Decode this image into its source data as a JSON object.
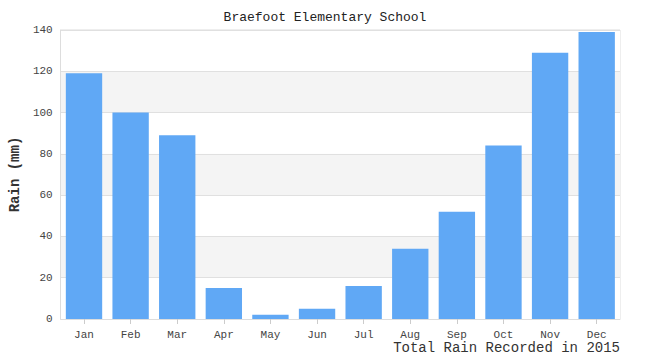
{
  "chart_data": {
    "type": "bar",
    "title": "Braefoot Elementary School",
    "x_label": "Total Rain Recorded in 2015",
    "y_label": "Rain (mm)",
    "categories": [
      "Jan",
      "Feb",
      "Mar",
      "Apr",
      "May",
      "Jun",
      "Jul",
      "Aug",
      "Sep",
      "Oct",
      "Nov",
      "Dec"
    ],
    "values": [
      119,
      100,
      89,
      15,
      2,
      5,
      16,
      34,
      52,
      84,
      129,
      139
    ],
    "color": "#60a8f5",
    "ylim": [
      0,
      140
    ],
    "yticks": [
      0,
      20,
      40,
      60,
      80,
      100,
      120,
      140
    ],
    "grid": true
  }
}
